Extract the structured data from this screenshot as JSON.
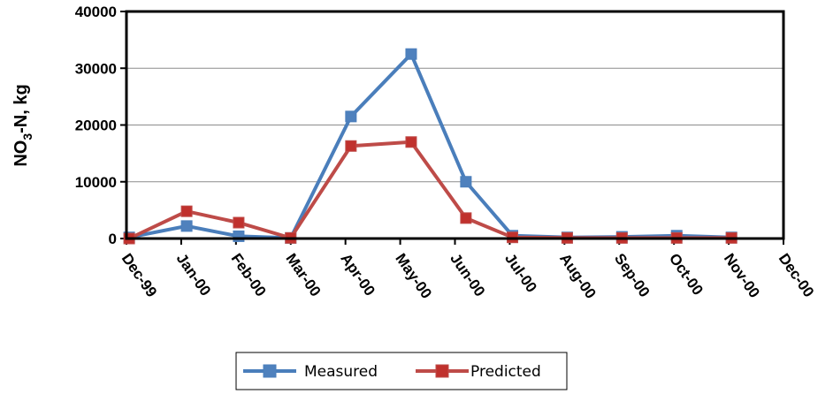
{
  "chart_data": {
    "type": "line",
    "categories": [
      "Dec-99",
      "Jan-00",
      "Feb-00",
      "Mar-00",
      "Apr-00",
      "May-00",
      "Jun-00",
      "Jul-00",
      "Aug-00",
      "Sep-00",
      "Oct-00",
      "Nov-00",
      "Dec-00"
    ],
    "series": [
      {
        "name": "Measured",
        "color": "#4a7ebb",
        "marker_fill": "#4f81bd",
        "x": [
          0.05,
          1.1,
          2.05,
          3.0,
          4.1,
          5.2,
          6.2,
          7.05,
          8.05,
          9.05,
          10.05,
          11.05
        ],
        "values": [
          200,
          2200,
          400,
          100,
          21500,
          32500,
          10000,
          500,
          200,
          300,
          500,
          200
        ]
      },
      {
        "name": "Predicted",
        "color": "#be4b48",
        "marker_fill": "#c0312d",
        "x": [
          0.05,
          1.1,
          2.05,
          3.0,
          4.1,
          5.2,
          6.2,
          7.05,
          8.05,
          9.05,
          10.05,
          11.05
        ],
        "values": [
          0,
          4800,
          2800,
          100,
          16300,
          17000,
          3600,
          200,
          100,
          100,
          100,
          100
        ]
      }
    ],
    "ylabel": "NO3-N, kg",
    "ylabel_parts": {
      "main": "NO",
      "sub": "3",
      "rest": "-N, kg"
    },
    "ylim": [
      0,
      40000
    ],
    "yticks": [
      0,
      10000,
      20000,
      30000,
      40000
    ],
    "grid": true,
    "legend_position": "bottom"
  }
}
